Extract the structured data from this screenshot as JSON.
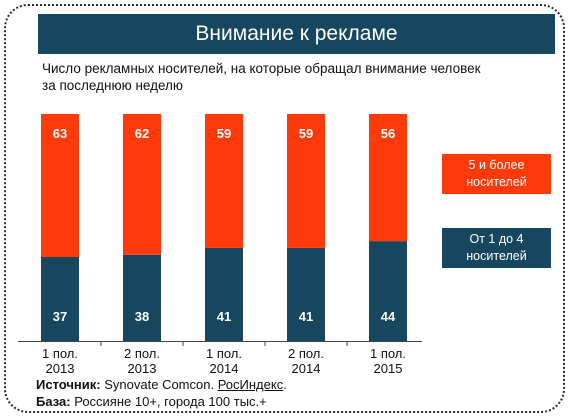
{
  "chart_data": {
    "type": "bar",
    "stacked": true,
    "title": "Внимание к рекламе",
    "subtitle": "Число рекламных носителей, на которые обращал внимание человек за последнюю неделю",
    "categories": [
      [
        "1 пол.",
        "2013"
      ],
      [
        "2 пол.",
        "2013"
      ],
      [
        "1 пол.",
        "2014"
      ],
      [
        "2 пол.",
        "2014"
      ],
      [
        "1 пол.",
        "2015"
      ]
    ],
    "series": [
      {
        "name": "От 1 до 4 носителей",
        "color": "#17475f",
        "values": [
          37,
          38,
          41,
          41,
          44
        ]
      },
      {
        "name": "5 и более носителей",
        "color": "#ff3a0a",
        "values": [
          63,
          62,
          59,
          59,
          56
        ]
      }
    ],
    "ylim": [
      0,
      100
    ],
    "legend_position": "right"
  },
  "footer": {
    "source_label": "Источник:",
    "source_text": "Synovate Comcon. ",
    "source_link": "РосИндекс",
    "source_end": ".",
    "base_label": "База:",
    "base_text": "Россияне 10+, города 100 тыс.+"
  }
}
